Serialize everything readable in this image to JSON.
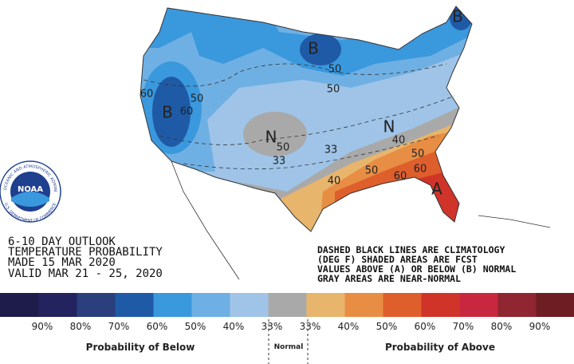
{
  "title_block": {
    "lines": [
      "6-10 DAY OUTLOOK",
      "TEMPERATURE PROBABILITY",
      "MADE  15 MAR 2020",
      "VALID  MAR 21 - 25, 2020"
    ]
  },
  "notes": [
    "DASHED BLACK LINES ARE CLIMATOLOGY",
    "(DEG F) SHADED AREAS ARE FCST",
    "VALUES ABOVE (A) OR BELOW (B) NORMAL",
    "GRAY AREAS ARE NEAR-NORMAL"
  ],
  "logo": {
    "text": "NOAA",
    "ring_top": "NATIONAL OCEANIC AND ATMOSPHERIC ADMINISTRATION",
    "ring_bottom": "U.S. DEPARTMENT OF COMMERCE"
  },
  "map_labels": [
    "B",
    "B",
    "B",
    "N",
    "N",
    "A",
    "60",
    "50",
    "60",
    "50",
    "50",
    "40",
    "33",
    "33",
    "50",
    "40",
    "50",
    "60",
    "60",
    "50"
  ],
  "legend": {
    "colors": [
      "#1d1c4b",
      "#23245f",
      "#2b3f7d",
      "#1f5aa6",
      "#3a98dd",
      "#6fb0e4",
      "#9fc4e8",
      "#a9a9a9",
      "#e8b56c",
      "#e88d44",
      "#de5e2c",
      "#d03428",
      "#c8283f",
      "#8f2631",
      "#6e1e22"
    ],
    "labels": [
      "90%",
      "80%",
      "70%",
      "60%",
      "50%",
      "40%",
      "33%",
      "33%",
      "40%",
      "50%",
      "60%",
      "70%",
      "80%",
      "90%"
    ],
    "groups": [
      "Probability of Below",
      "Normal",
      "Probability of Above"
    ]
  }
}
